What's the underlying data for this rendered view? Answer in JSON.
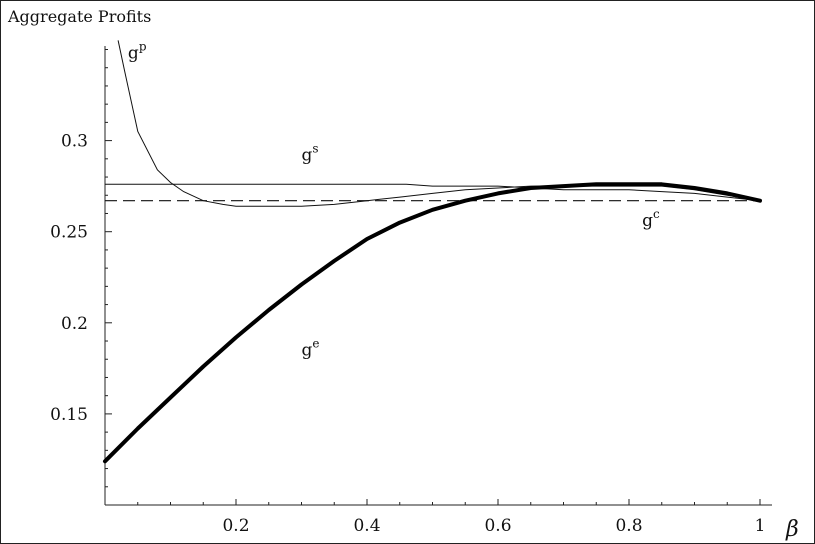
{
  "chart_data": {
    "type": "line",
    "title": "",
    "ylabel": "Aggregate Profits",
    "xlabel": "β",
    "xlim": [
      0,
      1.0
    ],
    "ylim": [
      0.1,
      0.35
    ],
    "xticks": [
      0.2,
      0.4,
      0.6,
      0.8,
      1.0
    ],
    "xtick_labels": [
      "0.2",
      "0.4",
      "0.6",
      "0.8",
      "1"
    ],
    "yticks": [
      0.15,
      0.2,
      0.25,
      0.3
    ],
    "ytick_labels": [
      "0.15",
      "0.2",
      "0.25",
      "0.3"
    ],
    "grid": false,
    "legend": "none",
    "series": [
      {
        "id": "gp",
        "label_base": "g",
        "label_sup": "p",
        "style": "thin",
        "x": [
          0.02,
          0.03,
          0.05,
          0.08,
          0.1,
          0.12,
          0.15,
          0.18,
          0.2,
          0.25,
          0.3,
          0.35,
          0.4,
          0.45,
          0.5,
          0.55,
          0.6,
          0.65,
          0.7,
          0.75,
          0.8,
          0.85,
          0.9,
          0.95,
          1.0
        ],
        "y": [
          0.355,
          0.338,
          0.305,
          0.284,
          0.277,
          0.272,
          0.267,
          0.265,
          0.264,
          0.264,
          0.264,
          0.265,
          0.267,
          0.269,
          0.271,
          0.273,
          0.274,
          0.275,
          0.275,
          0.275,
          0.275,
          0.275,
          0.273,
          0.27,
          0.267
        ]
      },
      {
        "id": "gs",
        "label_base": "g",
        "label_sup": "s",
        "style": "thin",
        "x": [
          0.0,
          0.1,
          0.2,
          0.3,
          0.4,
          0.46,
          0.5,
          0.55,
          0.6,
          0.65,
          0.7,
          0.75,
          0.8,
          0.85,
          0.9,
          0.95,
          1.0
        ],
        "y": [
          0.276,
          0.276,
          0.276,
          0.276,
          0.276,
          0.276,
          0.275,
          0.275,
          0.275,
          0.274,
          0.273,
          0.273,
          0.273,
          0.272,
          0.271,
          0.269,
          0.267
        ]
      },
      {
        "id": "gc",
        "label_base": "g",
        "label_sup": "c",
        "style": "dashed",
        "x": [
          0.0,
          1.0
        ],
        "y": [
          0.267,
          0.267
        ]
      },
      {
        "id": "ge",
        "label_base": "g",
        "label_sup": "e",
        "style": "thick",
        "x": [
          0.0,
          0.05,
          0.1,
          0.15,
          0.2,
          0.25,
          0.3,
          0.35,
          0.4,
          0.45,
          0.5,
          0.55,
          0.6,
          0.65,
          0.7,
          0.75,
          0.8,
          0.85,
          0.9,
          0.95,
          1.0
        ],
        "y": [
          0.124,
          0.142,
          0.159,
          0.176,
          0.192,
          0.207,
          0.221,
          0.234,
          0.246,
          0.255,
          0.262,
          0.267,
          0.271,
          0.274,
          0.275,
          0.276,
          0.276,
          0.276,
          0.274,
          0.271,
          0.267
        ]
      }
    ],
    "annotations": [
      {
        "series": "gp",
        "x": 0.035,
        "y": 0.345
      },
      {
        "series": "gs",
        "x": 0.3,
        "y": 0.289
      },
      {
        "series": "gc",
        "x": 0.82,
        "y": 0.253
      },
      {
        "series": "ge",
        "x": 0.3,
        "y": 0.182
      }
    ]
  }
}
